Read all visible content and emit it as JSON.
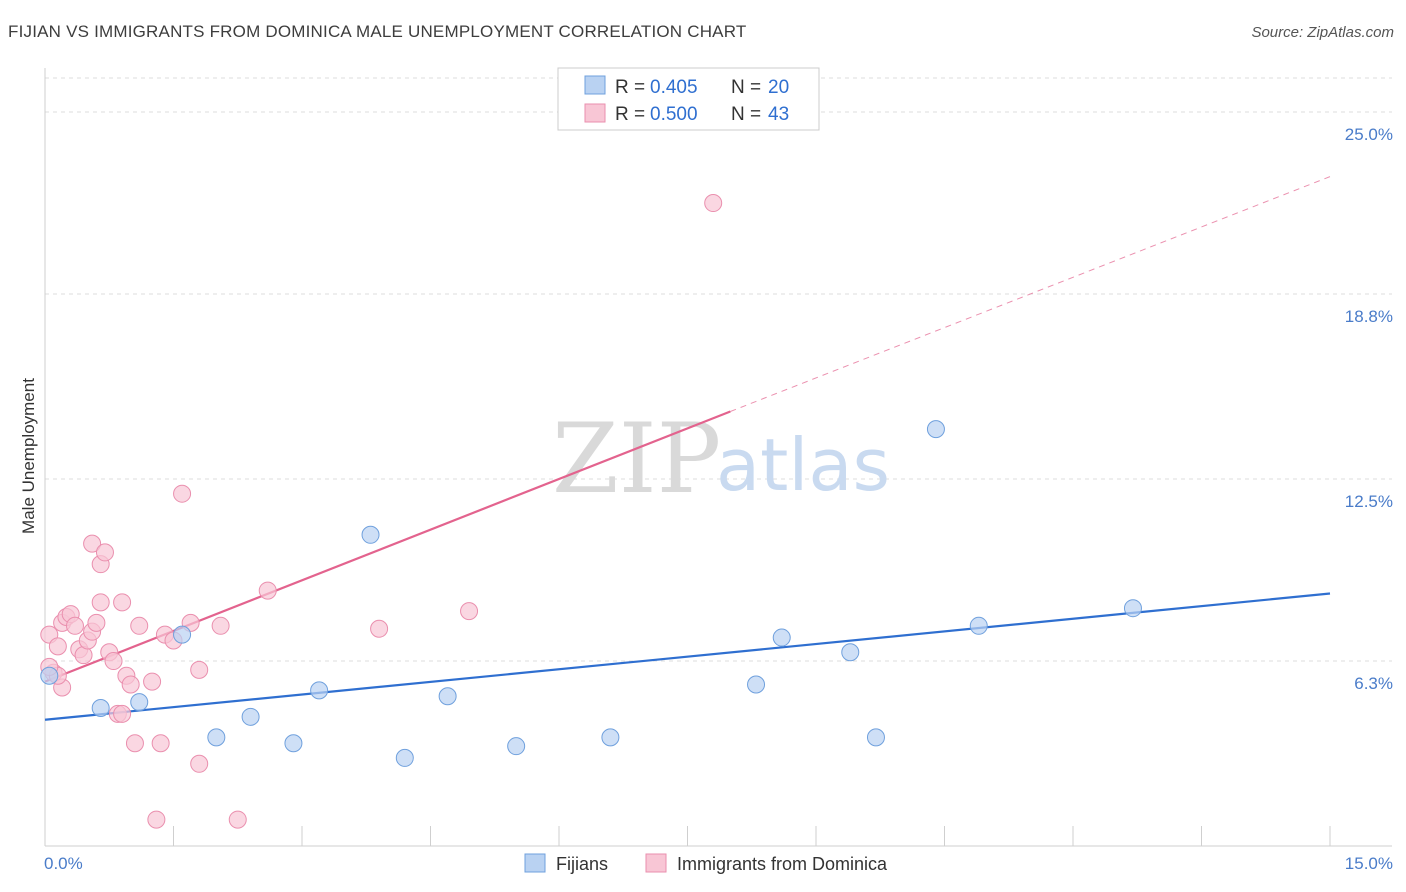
{
  "title": "FIJIAN VS IMMIGRANTS FROM DOMINICA MALE UNEMPLOYMENT CORRELATION CHART",
  "source": "Source: ZipAtlas.com",
  "watermark": {
    "zip": "ZIP",
    "atlas": "atlas"
  },
  "colors": {
    "blue_fill": "#b9d2f2",
    "blue_stroke": "#6fa0dd",
    "blue_line": "#2f6fd0",
    "pink_fill": "#f8c6d5",
    "pink_stroke": "#ea8fae",
    "pink_line": "#e3638e",
    "grid": "#dddddd",
    "tick_label": "#4a7cc9"
  },
  "legend": {
    "rows": [
      {
        "r_label": "R =",
        "r_value": "0.405",
        "n_label": "N =",
        "n_value": "20"
      },
      {
        "r_label": "R =",
        "r_value": "0.500",
        "n_label": "N =",
        "n_value": "43"
      }
    ]
  },
  "chart_data": {
    "type": "scatter",
    "title": "FIJIAN VS IMMIGRANTS FROM DOMINICA MALE UNEMPLOYMENT CORRELATION CHART",
    "xlabel": "",
    "ylabel": "Male Unemployment",
    "xlim": [
      0,
      15
    ],
    "ylim": [
      0,
      26.5
    ],
    "x_tick_labels": [
      "0.0%",
      "15.0%"
    ],
    "y_ticks": [
      6.3,
      12.5,
      18.8,
      25.0
    ],
    "y_tick_labels": [
      "6.3%",
      "12.5%",
      "18.8%",
      "25.0%"
    ],
    "grid": true,
    "legend_position": "top-center",
    "series": [
      {
        "name": "Fijians",
        "color": "#6fa0dd",
        "points": [
          [
            0.05,
            5.8
          ],
          [
            0.65,
            4.7
          ],
          [
            1.1,
            4.9
          ],
          [
            1.6,
            7.2
          ],
          [
            2.0,
            3.7
          ],
          [
            2.4,
            4.4
          ],
          [
            2.9,
            3.5
          ],
          [
            3.2,
            5.3
          ],
          [
            3.8,
            10.6
          ],
          [
            4.2,
            3.0
          ],
          [
            4.7,
            5.1
          ],
          [
            5.5,
            3.4
          ],
          [
            6.6,
            3.7
          ],
          [
            8.3,
            5.5
          ],
          [
            8.6,
            7.1
          ],
          [
            9.4,
            6.6
          ],
          [
            9.7,
            3.7
          ],
          [
            10.4,
            14.2
          ],
          [
            10.9,
            7.5
          ],
          [
            12.7,
            8.1
          ]
        ],
        "trend": {
          "x": [
            0,
            15
          ],
          "y": [
            4.3,
            8.6
          ]
        }
      },
      {
        "name": "Immigrants from Dominica",
        "color": "#ea8fae",
        "points": [
          [
            0.05,
            7.2
          ],
          [
            0.1,
            5.9
          ],
          [
            0.15,
            6.8
          ],
          [
            0.2,
            5.4
          ],
          [
            0.2,
            7.6
          ],
          [
            0.25,
            7.8
          ],
          [
            0.3,
            7.9
          ],
          [
            0.35,
            7.5
          ],
          [
            0.4,
            6.7
          ],
          [
            0.45,
            6.5
          ],
          [
            0.5,
            7.0
          ],
          [
            0.55,
            7.3
          ],
          [
            0.55,
            10.3
          ],
          [
            0.6,
            7.6
          ],
          [
            0.65,
            9.6
          ],
          [
            0.65,
            8.3
          ],
          [
            0.7,
            10.0
          ],
          [
            0.75,
            6.6
          ],
          [
            0.8,
            6.3
          ],
          [
            0.85,
            4.5
          ],
          [
            0.9,
            8.3
          ],
          [
            0.9,
            4.5
          ],
          [
            0.95,
            5.8
          ],
          [
            1.0,
            5.5
          ],
          [
            1.05,
            3.5
          ],
          [
            1.1,
            7.5
          ],
          [
            1.25,
            5.6
          ],
          [
            1.3,
            0.9
          ],
          [
            1.35,
            3.5
          ],
          [
            1.4,
            7.2
          ],
          [
            1.5,
            7.0
          ],
          [
            1.6,
            12.0
          ],
          [
            1.7,
            7.6
          ],
          [
            1.8,
            2.8
          ],
          [
            1.8,
            6.0
          ],
          [
            2.05,
            7.5
          ],
          [
            2.25,
            0.9
          ],
          [
            2.6,
            8.7
          ],
          [
            3.9,
            7.4
          ],
          [
            4.95,
            8.0
          ],
          [
            7.8,
            21.9
          ],
          [
            0.15,
            5.8
          ],
          [
            0.05,
            6.1
          ]
        ],
        "trend": {
          "x": [
            0,
            8.0
          ],
          "y": [
            5.6,
            14.8
          ]
        },
        "trend_dashed": {
          "x": [
            8.0,
            15
          ],
          "y": [
            14.8,
            22.8
          ]
        }
      }
    ]
  }
}
